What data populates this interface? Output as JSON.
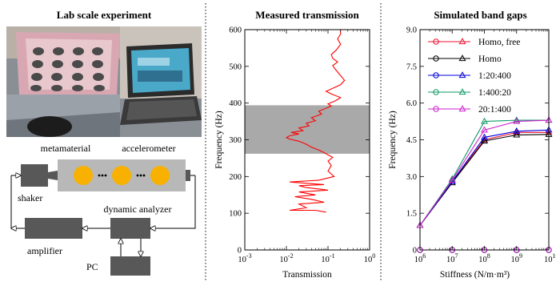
{
  "panels": {
    "experiment": {
      "title": "Lab scale experiment",
      "labels": {
        "metamaterial": "metamaterial",
        "accelerometer": "accelerometer",
        "shaker": "shaker",
        "dynamic_analyzer": "dynamic analyzer",
        "amplifier": "amplifier",
        "pc": "PC"
      }
    }
  },
  "colors": {
    "gray_box": "#585858",
    "bar": "#b8b8b8",
    "mass": "#f8b100",
    "band": "#a9a9a9",
    "transmission_line": "#ff0000"
  },
  "chart_data": [
    {
      "type": "line",
      "title": "Measured transmission",
      "xlabel": "Transmission",
      "ylabel": "Frequency (Hz)",
      "xscale": "log",
      "xlim": [
        0.001,
        1
      ],
      "ylim": [
        0,
        600
      ],
      "x_ticks": [
        {
          "v": 0.001,
          "b": "10",
          "e": "-3"
        },
        {
          "v": 0.01,
          "b": "10",
          "e": "-2"
        },
        {
          "v": 0.1,
          "b": "10",
          "e": "-1"
        },
        {
          "v": 1,
          "b": "10",
          "e": "0"
        }
      ],
      "y_ticks": [
        "0",
        "100",
        "200",
        "300",
        "400",
        "500",
        "600"
      ],
      "band": [
        262,
        394
      ],
      "series": [
        {
          "color": "#ff0000",
          "points": [
            [
              0.09,
              103
            ],
            [
              0.05,
              108
            ],
            [
              0.012,
              108
            ],
            [
              0.03,
              115
            ],
            [
              0.02,
              125
            ],
            [
              0.08,
              130
            ],
            [
              0.04,
              138
            ],
            [
              0.016,
              145
            ],
            [
              0.05,
              150
            ],
            [
              0.02,
              158
            ],
            [
              0.1,
              163
            ],
            [
              0.03,
              170
            ],
            [
              0.02,
              175
            ],
            [
              0.08,
              178
            ],
            [
              0.012,
              185
            ],
            [
              0.06,
              190
            ],
            [
              0.14,
              200
            ],
            [
              0.1,
              215
            ],
            [
              0.12,
              230
            ],
            [
              0.1,
              242
            ],
            [
              0.13,
              252
            ],
            [
              0.09,
              262
            ],
            [
              0.06,
              272
            ],
            [
              0.04,
              280
            ],
            [
              0.03,
              288
            ],
            [
              0.02,
              296
            ],
            [
              0.012,
              302
            ],
            [
              0.01,
              306
            ],
            [
              0.012,
              311
            ],
            [
              0.02,
              316
            ],
            [
              0.013,
              320
            ],
            [
              0.025,
              325
            ],
            [
              0.02,
              332
            ],
            [
              0.035,
              338
            ],
            [
              0.03,
              345
            ],
            [
              0.05,
              352
            ],
            [
              0.04,
              360
            ],
            [
              0.07,
              370
            ],
            [
              0.06,
              378
            ],
            [
              0.09,
              386
            ],
            [
              0.12,
              392
            ],
            [
              0.1,
              398
            ],
            [
              0.15,
              406
            ],
            [
              0.2,
              415
            ],
            [
              0.12,
              425
            ],
            [
              0.09,
              432
            ],
            [
              0.13,
              440
            ],
            [
              0.2,
              450
            ],
            [
              0.25,
              462
            ],
            [
              0.19,
              478
            ],
            [
              0.15,
              492
            ],
            [
              0.13,
              502
            ],
            [
              0.17,
              512
            ],
            [
              0.13,
              522
            ],
            [
              0.12,
              532
            ],
            [
              0.16,
              545
            ],
            [
              0.2,
              560
            ],
            [
              0.17,
              575
            ],
            [
              0.2,
              588
            ],
            [
              0.2,
              600
            ]
          ]
        }
      ]
    },
    {
      "type": "line",
      "title": "Simulated band gaps",
      "xlabel": "Stiffness (N/m·m³)",
      "ylabel": "Frequency (Hz)",
      "xscale": "log",
      "xlim": [
        1000000,
        10000000000
      ],
      "ylim": [
        0,
        9
      ],
      "x_ticks": [
        {
          "v": 1000000,
          "b": "10",
          "e": "6"
        },
        {
          "v": 10000000,
          "b": "10",
          "e": "7"
        },
        {
          "v": 100000000,
          "b": "10",
          "e": "8"
        },
        {
          "v": 1000000000,
          "b": "10",
          "e": "9"
        },
        {
          "v": 10000000000,
          "b": "10",
          "e": "10"
        }
      ],
      "y_ticks": [
        "0",
        "1.5",
        "3.0",
        "4.5",
        "6.0",
        "7.5",
        "9.0"
      ],
      "x": [
        1000000,
        10000000,
        100000000,
        1000000000,
        10000000000
      ],
      "series": [
        {
          "name": "Homo, free",
          "color": "#ee1133",
          "lower": [
            0,
            0,
            0,
            0,
            0
          ],
          "upper": [
            1.0,
            2.8,
            4.5,
            4.8,
            4.8
          ]
        },
        {
          "name": "Homo",
          "color": "#000000",
          "lower": [
            0,
            0,
            0,
            0,
            0
          ],
          "upper": [
            1.0,
            2.75,
            4.45,
            4.7,
            4.72
          ]
        },
        {
          "name": "1:20:400",
          "color": "#0000dd",
          "lower": [
            0,
            0,
            0,
            0,
            0
          ],
          "upper": [
            1.0,
            2.8,
            4.6,
            4.85,
            4.9
          ]
        },
        {
          "name": "1:400:20",
          "color": "#119966",
          "lower": [
            0,
            0,
            0,
            0,
            0
          ],
          "upper": [
            1.0,
            2.9,
            5.25,
            5.3,
            5.3
          ]
        },
        {
          "name": "20:1:400",
          "color": "#cc22cc",
          "lower": [
            0,
            0,
            0,
            0,
            0
          ],
          "upper": [
            1.0,
            2.85,
            4.9,
            5.25,
            5.3
          ]
        }
      ]
    }
  ]
}
